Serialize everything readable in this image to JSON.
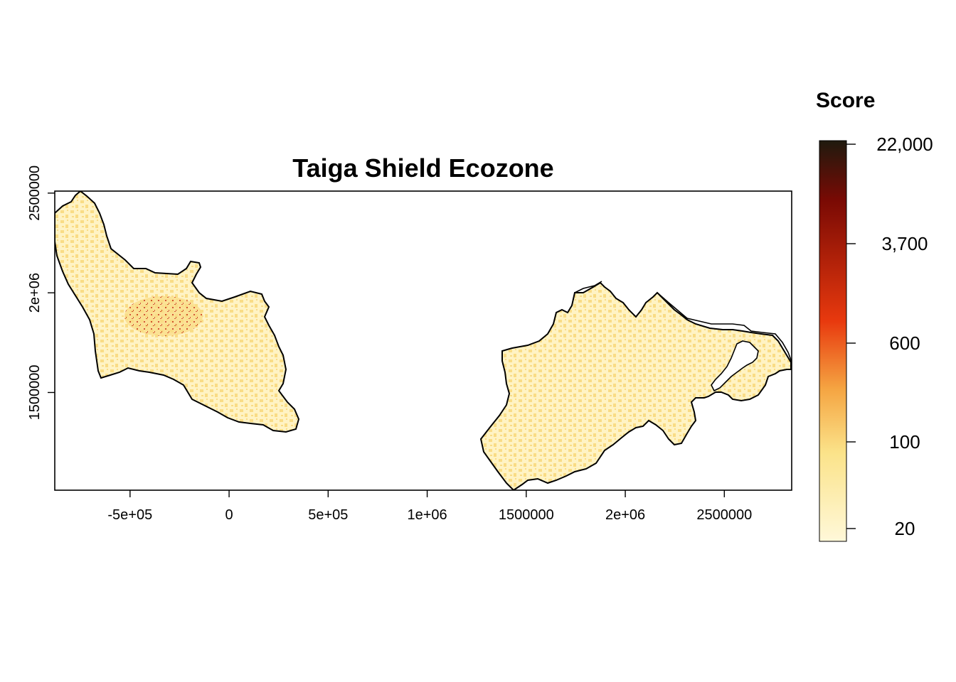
{
  "map": {
    "title": "Taiga Shield Ecozone",
    "x_ticks": [
      "-5e+05",
      "0",
      "5e+05",
      "1e+06",
      "1500000",
      "2e+06",
      "2500000"
    ],
    "y_ticks": [
      "1500000",
      "2e+06",
      "2500000"
    ],
    "x_tick_values": [
      -500000,
      0,
      500000,
      1000000,
      1500000,
      2000000,
      2500000
    ],
    "y_tick_values": [
      1500000,
      2000000,
      2500000
    ],
    "x_range": [
      -880000,
      2840000
    ],
    "y_range": [
      1010000,
      2510000
    ],
    "regions": [
      "western-taiga-shield",
      "eastern-taiga-shield"
    ]
  },
  "legend": {
    "title": "Score",
    "labels": [
      "22,000",
      "3,700",
      "600",
      "100",
      "20"
    ],
    "colors": [
      "#1f1a0e",
      "#7a0a04",
      "#e8390e",
      "#f5a542",
      "#fbe38a",
      "#fff8d9"
    ]
  },
  "colors": {
    "fill_low": "#fff3c4",
    "fill_mid": "#f9dc85",
    "fill_high": "#c4260c",
    "outline": "#000000"
  }
}
